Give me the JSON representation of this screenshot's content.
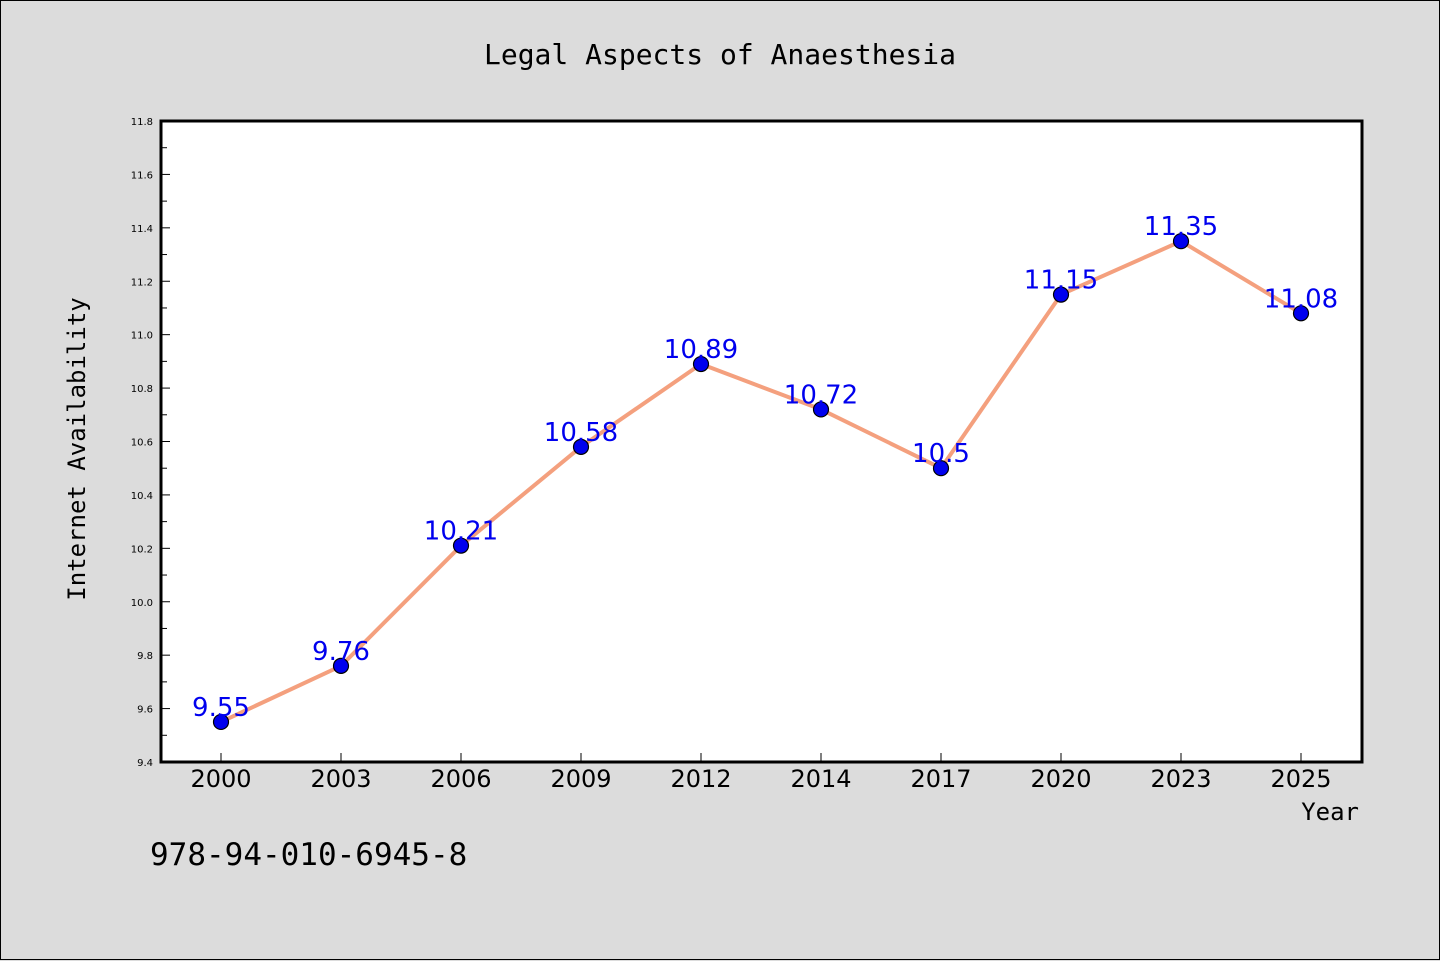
{
  "chart_data": {
    "type": "line",
    "title": "Legal Aspects of Anaesthesia",
    "xlabel": "Year",
    "ylabel": "Internet Availability",
    "categories": [
      "2000",
      "2003",
      "2006",
      "2009",
      "2012",
      "2014",
      "2017",
      "2020",
      "2023",
      "2025"
    ],
    "values": [
      9.55,
      9.76,
      10.21,
      10.58,
      10.89,
      10.72,
      10.5,
      11.15,
      11.35,
      11.08
    ],
    "data_labels": [
      "9.55",
      "9.76",
      "10.21",
      "10.58",
      "10.89",
      "10.72",
      "10.5",
      "11.15",
      "11.35",
      "11.08"
    ],
    "ylim": [
      9.4,
      11.8
    ],
    "yticks": [
      "9.4",
      "9.6",
      "9.8",
      "10.0",
      "10.2",
      "10.4",
      "10.6",
      "10.8",
      "11.0",
      "11.2",
      "11.4",
      "11.6",
      "11.8"
    ],
    "grid": false,
    "legend": "none",
    "line_color": "#f4a07e",
    "marker_color": "#0000ee",
    "label_color": "#0000ee"
  },
  "footer": {
    "isbn": "978-94-010-6945-8"
  }
}
